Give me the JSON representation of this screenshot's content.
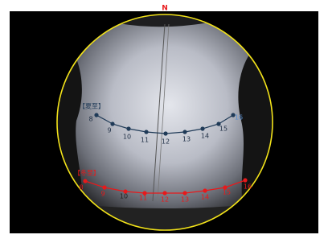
{
  "north": "N",
  "summer": {
    "label": "【夏至】",
    "hours": [
      8,
      9,
      10,
      11,
      12,
      13,
      14,
      15,
      16
    ]
  },
  "winter": {
    "label": "【冬至】",
    "hours": [
      8,
      9,
      10,
      11,
      12,
      13,
      14,
      15,
      16
    ]
  }
}
